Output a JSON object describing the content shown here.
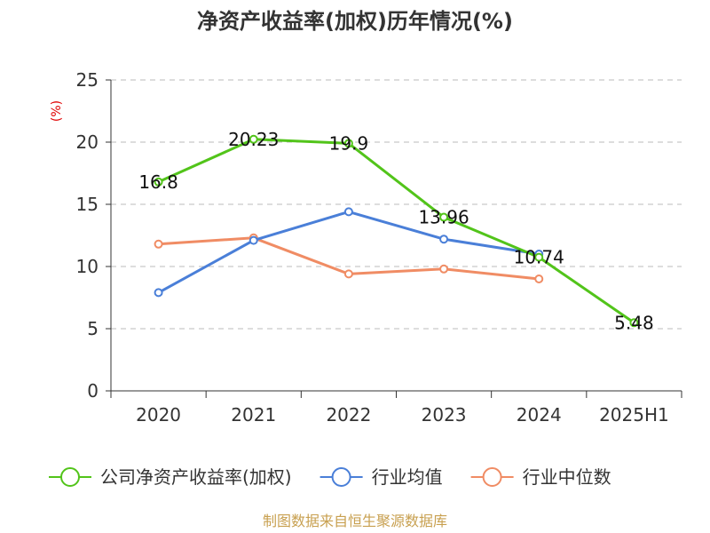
{
  "chart_data": {
    "type": "line",
    "title": "净资产收益率(加权)历年情况(%)",
    "ylabel": "(%)",
    "categories": [
      "2020",
      "2021",
      "2022",
      "2023",
      "2024",
      "2025H1"
    ],
    "ylim": [
      0,
      25
    ],
    "yticks": [
      "0",
      "5",
      "10",
      "15",
      "20",
      "25"
    ],
    "grid": true,
    "legend_position": "bottom",
    "series": [
      {
        "name": "公司净资产收益率(加权)",
        "color": "#52c41a",
        "values": [
          16.8,
          20.23,
          19.9,
          13.96,
          10.74,
          5.48
        ],
        "labels": [
          "16.8",
          "20.23",
          "19.9",
          "13.96",
          "10.74",
          "5.48"
        ]
      },
      {
        "name": "行业均值",
        "color": "#4a7fd8",
        "values": [
          7.9,
          12.1,
          14.4,
          12.2,
          11.0,
          null
        ]
      },
      {
        "name": "行业中位数",
        "color": "#f08c64",
        "values": [
          11.8,
          12.3,
          9.4,
          9.8,
          9.0,
          null
        ]
      }
    ]
  },
  "source": "制图数据来自恒生聚源数据库"
}
